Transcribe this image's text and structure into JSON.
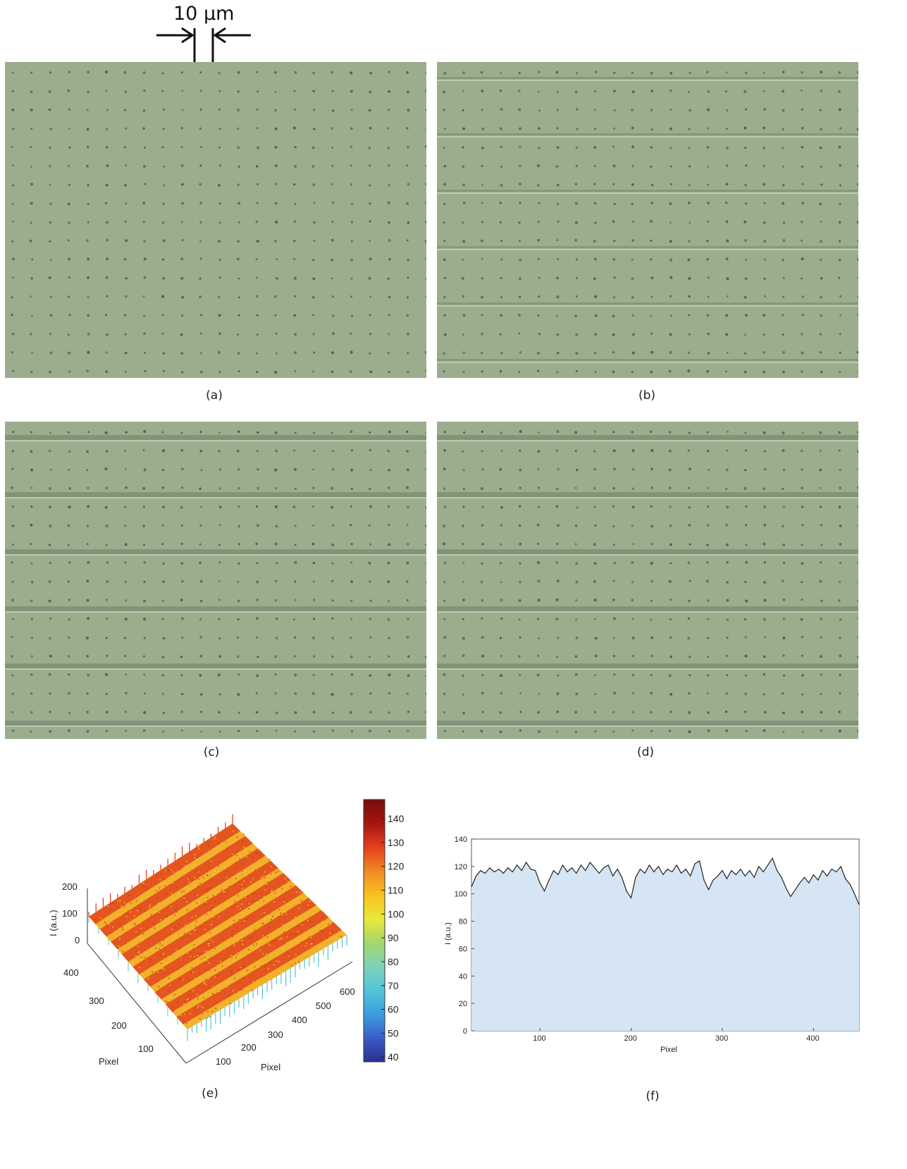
{
  "scale_bar": {
    "label": "10 µm"
  },
  "panels": {
    "a": {
      "caption": "(a)"
    },
    "b": {
      "caption": "(b)"
    },
    "c": {
      "caption": "(c)"
    },
    "d": {
      "caption": "(d)"
    },
    "e": {
      "caption": "(e)"
    },
    "f": {
      "caption": "(f)"
    }
  },
  "colors": {
    "micro_bg": "#9aae8e",
    "dot": "#4d5646",
    "groove_dark": "#7d8c75",
    "groove_light": "#c4d0bb",
    "surface_high": "#e2451f",
    "surface_low": "#f2b12a",
    "profile_fill": "#d6e5f3",
    "profile_line": "#222222"
  },
  "chart_data": [
    {
      "type": "surface3d",
      "panel": "e",
      "z_label": "I (a.u.)",
      "z_ticks": [
        "0",
        "100",
        "200"
      ],
      "x_label": "Pixel",
      "x_ticks": [
        "100",
        "200",
        "300",
        "400",
        "500",
        "600"
      ],
      "y_label": "Pixel",
      "y_ticks": [
        "100",
        "200",
        "300",
        "400"
      ],
      "colorbar": {
        "min": 38,
        "max": 148,
        "ticks": [
          "40",
          "50",
          "60",
          "70",
          "80",
          "90",
          "100",
          "110",
          "120",
          "130",
          "140"
        ],
        "stops": [
          "#2a2f8f",
          "#3a5dc8",
          "#3b9ee0",
          "#52c6d8",
          "#7fd0b8",
          "#a6d86a",
          "#e8e83a",
          "#f8c21e",
          "#f08a22",
          "#e4411c",
          "#a51511",
          "#7a0c0c"
        ]
      },
      "zlim": [
        0,
        200
      ]
    },
    {
      "type": "area",
      "panel": "f",
      "ylabel": "I (a.u.)",
      "xlabel": "Pixel",
      "xlim": [
        25,
        450
      ],
      "ylim": [
        0,
        140
      ],
      "x_ticks": [
        "100",
        "200",
        "300",
        "400"
      ],
      "y_ticks": [
        "0",
        "20",
        "40",
        "60",
        "80",
        "100",
        "120",
        "140"
      ],
      "points": [
        [
          25,
          105
        ],
        [
          30,
          113
        ],
        [
          35,
          117
        ],
        [
          40,
          115
        ],
        [
          45,
          119
        ],
        [
          50,
          116
        ],
        [
          55,
          118
        ],
        [
          60,
          115
        ],
        [
          65,
          119
        ],
        [
          70,
          116
        ],
        [
          75,
          121
        ],
        [
          80,
          117
        ],
        [
          85,
          123
        ],
        [
          90,
          118
        ],
        [
          95,
          117
        ],
        [
          100,
          108
        ],
        [
          105,
          102
        ],
        [
          110,
          110
        ],
        [
          115,
          117
        ],
        [
          120,
          114
        ],
        [
          125,
          121
        ],
        [
          130,
          116
        ],
        [
          135,
          119
        ],
        [
          140,
          115
        ],
        [
          145,
          121
        ],
        [
          150,
          117
        ],
        [
          155,
          123
        ],
        [
          160,
          119
        ],
        [
          165,
          115
        ],
        [
          170,
          119
        ],
        [
          175,
          121
        ],
        [
          180,
          113
        ],
        [
          185,
          118
        ],
        [
          190,
          112
        ],
        [
          195,
          102
        ],
        [
          200,
          97
        ],
        [
          205,
          112
        ],
        [
          210,
          118
        ],
        [
          215,
          115
        ],
        [
          220,
          121
        ],
        [
          225,
          116
        ],
        [
          230,
          120
        ],
        [
          235,
          114
        ],
        [
          240,
          118
        ],
        [
          245,
          116
        ],
        [
          250,
          121
        ],
        [
          255,
          115
        ],
        [
          260,
          118
        ],
        [
          265,
          113
        ],
        [
          270,
          122
        ],
        [
          275,
          124
        ],
        [
          280,
          110
        ],
        [
          285,
          103
        ],
        [
          290,
          110
        ],
        [
          295,
          113
        ],
        [
          300,
          117
        ],
        [
          305,
          111
        ],
        [
          310,
          117
        ],
        [
          315,
          114
        ],
        [
          320,
          118
        ],
        [
          325,
          113
        ],
        [
          330,
          117
        ],
        [
          335,
          112
        ],
        [
          340,
          120
        ],
        [
          345,
          116
        ],
        [
          350,
          121
        ],
        [
          355,
          126
        ],
        [
          360,
          117
        ],
        [
          365,
          112
        ],
        [
          370,
          104
        ],
        [
          375,
          98
        ],
        [
          380,
          103
        ],
        [
          385,
          108
        ],
        [
          390,
          112
        ],
        [
          395,
          108
        ],
        [
          400,
          114
        ],
        [
          405,
          110
        ],
        [
          410,
          117
        ],
        [
          415,
          113
        ],
        [
          420,
          118
        ],
        [
          425,
          116
        ],
        [
          430,
          120
        ],
        [
          435,
          111
        ],
        [
          440,
          107
        ],
        [
          445,
          100
        ],
        [
          450,
          92
        ]
      ]
    }
  ]
}
